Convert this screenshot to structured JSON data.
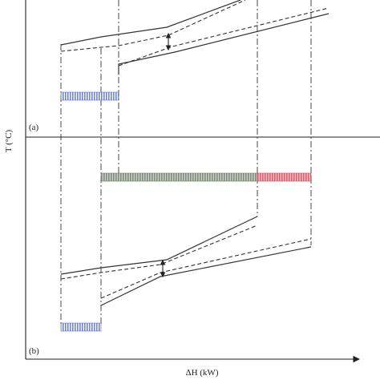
{
  "axis": {
    "y_label": "T (°C)",
    "x_label": "ΔH (kW)"
  },
  "panels": {
    "a": {
      "label": "(a)"
    },
    "b": {
      "label": "(b)"
    }
  },
  "colors": {
    "blue_bar": "#6f86d6",
    "gray_bar": "#8a9a8a",
    "red_bar": "#e0707a",
    "line": "#333333"
  }
}
